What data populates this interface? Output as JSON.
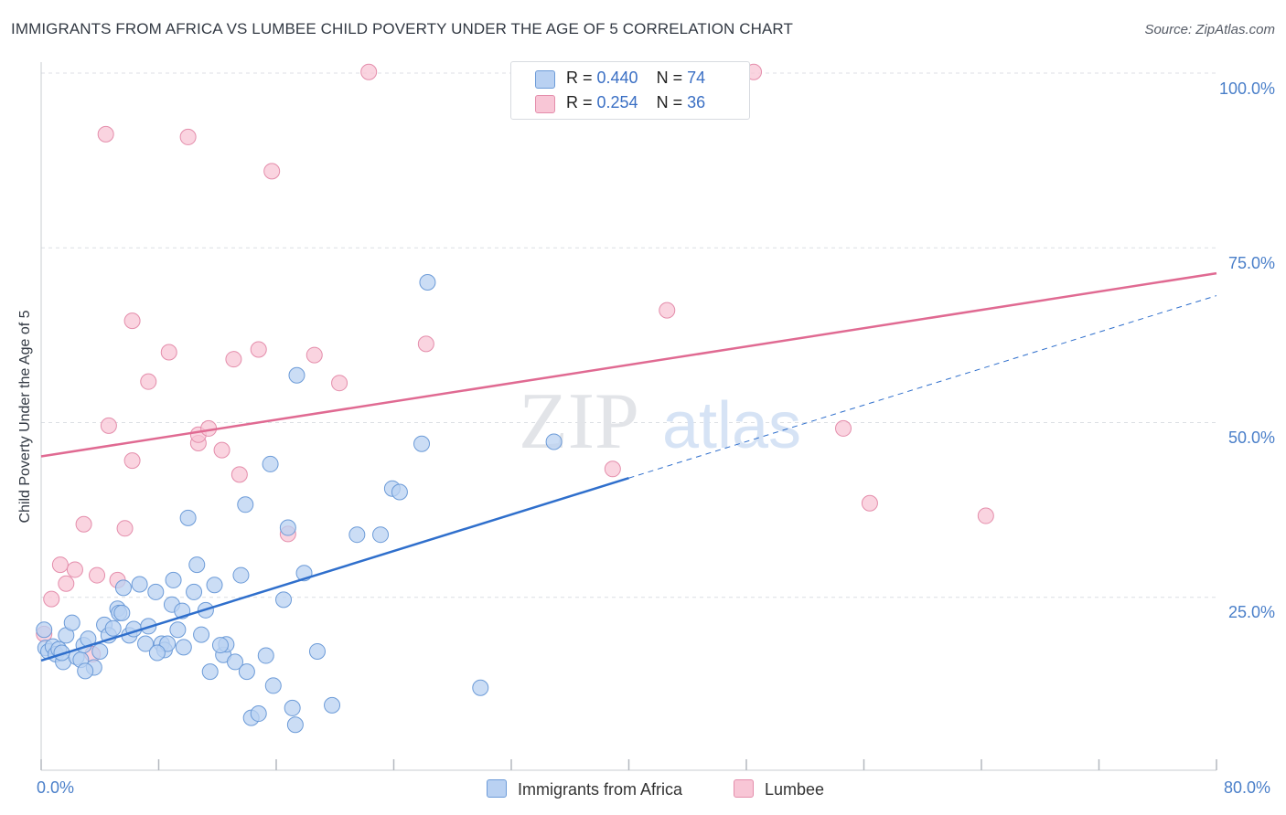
{
  "title": "IMMIGRANTS FROM AFRICA VS LUMBEE CHILD POVERTY UNDER THE AGE OF 5 CORRELATION CHART",
  "source": "Source: ZipAtlas.com",
  "watermark": {
    "zip": "ZIP",
    "atlas": "atlas"
  },
  "colors": {
    "blue_fill": "#b9d1f2",
    "blue_stroke": "#6c9bd8",
    "blue_line": "#2f6fcc",
    "pink_fill": "#f8c6d6",
    "pink_stroke": "#e48dab",
    "pink_line": "#e06a92",
    "tick_label": "#4a7fc9",
    "grid": "#dcdfe4"
  },
  "legend": {
    "rows": [
      {
        "r_label": "R = ",
        "r_value": "0.440",
        "n_label": "N = ",
        "n_value": "74",
        "color": "#b9d1f2"
      },
      {
        "r_label": "R = ",
        "r_value": "0.254",
        "n_label": "N = ",
        "n_value": "36",
        "color": "#f8c6d6"
      }
    ]
  },
  "chart_data": {
    "type": "scatter",
    "title": "IMMIGRANTS FROM AFRICA VS LUMBEE CHILD POVERTY UNDER THE AGE OF 5 CORRELATION CHART",
    "xlabel": "",
    "ylabel": "Child Poverty Under the Age of 5",
    "xlim": [
      0,
      80
    ],
    "ylim": [
      0,
      100
    ],
    "x_ticks": [
      "0.0%",
      "80.0%"
    ],
    "y_ticks": [
      {
        "value": 100,
        "label": "100.0%"
      },
      {
        "value": 75,
        "label": "75.0%"
      },
      {
        "value": 50,
        "label": "50.0%"
      },
      {
        "value": 25,
        "label": "25.0%"
      }
    ],
    "grid": true,
    "legend_position": "bottom",
    "series": [
      {
        "name": "Immigrants from Africa",
        "color": "#b9d1f2",
        "trend": {
          "x": [
            0,
            40
          ],
          "y": [
            15.7,
            41.8
          ],
          "dashed_extension": {
            "x": [
              40,
              80
            ],
            "y": [
              41.8,
              67.9
            ]
          }
        },
        "points": [
          [
            0.2,
            20.1
          ],
          [
            0.3,
            17.5
          ],
          [
            0.5,
            17.0
          ],
          [
            0.8,
            17.7
          ],
          [
            1.0,
            16.6
          ],
          [
            1.2,
            17.3
          ],
          [
            1.5,
            15.5
          ],
          [
            1.7,
            19.3
          ],
          [
            2.1,
            21.1
          ],
          [
            2.4,
            16.2
          ],
          [
            2.7,
            15.8
          ],
          [
            2.9,
            17.9
          ],
          [
            3.2,
            18.8
          ],
          [
            3.6,
            14.7
          ],
          [
            4.0,
            17.0
          ],
          [
            4.3,
            20.8
          ],
          [
            4.6,
            19.3
          ],
          [
            4.9,
            20.3
          ],
          [
            5.2,
            23.1
          ],
          [
            5.3,
            22.5
          ],
          [
            5.6,
            26.1
          ],
          [
            6.0,
            19.3
          ],
          [
            6.3,
            20.2
          ],
          [
            6.7,
            26.6
          ],
          [
            7.1,
            18.1
          ],
          [
            7.3,
            20.6
          ],
          [
            7.8,
            25.5
          ],
          [
            8.2,
            18.1
          ],
          [
            8.4,
            17.2
          ],
          [
            8.6,
            18.1
          ],
          [
            8.9,
            23.7
          ],
          [
            9.0,
            27.2
          ],
          [
            9.3,
            20.1
          ],
          [
            9.6,
            22.8
          ],
          [
            10.0,
            36.1
          ],
          [
            10.4,
            25.5
          ],
          [
            10.6,
            29.4
          ],
          [
            10.9,
            19.4
          ],
          [
            11.2,
            22.9
          ],
          [
            11.5,
            14.1
          ],
          [
            11.8,
            26.5
          ],
          [
            12.4,
            16.5
          ],
          [
            12.6,
            18.0
          ],
          [
            13.2,
            15.5
          ],
          [
            13.6,
            27.9
          ],
          [
            13.9,
            38.0
          ],
          [
            14.3,
            7.5
          ],
          [
            14.8,
            8.1
          ],
          [
            15.3,
            16.4
          ],
          [
            15.6,
            43.8
          ],
          [
            15.8,
            12.1
          ],
          [
            16.5,
            24.4
          ],
          [
            16.8,
            34.7
          ],
          [
            17.1,
            8.9
          ],
          [
            17.4,
            56.5
          ],
          [
            17.9,
            28.2
          ],
          [
            18.8,
            17.0
          ],
          [
            19.8,
            9.3
          ],
          [
            21.5,
            33.7
          ],
          [
            23.1,
            33.7
          ],
          [
            23.9,
            40.3
          ],
          [
            24.4,
            39.8
          ],
          [
            25.9,
            46.7
          ],
          [
            26.3,
            69.8
          ],
          [
            29.9,
            11.8
          ],
          [
            34.9,
            47.0
          ],
          [
            5.5,
            22.5
          ],
          [
            9.7,
            17.6
          ],
          [
            12.2,
            17.9
          ],
          [
            14.0,
            14.1
          ],
          [
            17.3,
            6.5
          ],
          [
            1.4,
            16.8
          ],
          [
            3.0,
            14.2
          ],
          [
            7.9,
            16.8
          ]
        ]
      },
      {
        "name": "Lumbee",
        "color": "#f8c6d6",
        "trend": {
          "x": [
            0,
            80
          ],
          "y": [
            44.9,
            71.1
          ]
        },
        "points": [
          [
            0.2,
            19.5
          ],
          [
            0.7,
            24.5
          ],
          [
            1.3,
            29.4
          ],
          [
            1.7,
            26.7
          ],
          [
            2.3,
            28.7
          ],
          [
            2.9,
            35.2
          ],
          [
            3.5,
            16.6
          ],
          [
            3.8,
            27.9
          ],
          [
            4.4,
            91.0
          ],
          [
            4.6,
            49.3
          ],
          [
            5.2,
            27.2
          ],
          [
            5.7,
            34.6
          ],
          [
            6.2,
            64.3
          ],
          [
            6.2,
            44.3
          ],
          [
            7.3,
            55.6
          ],
          [
            8.7,
            59.8
          ],
          [
            10.0,
            90.6
          ],
          [
            10.7,
            46.8
          ],
          [
            10.7,
            48.0
          ],
          [
            11.4,
            48.9
          ],
          [
            12.3,
            45.8
          ],
          [
            13.1,
            58.8
          ],
          [
            13.5,
            42.3
          ],
          [
            14.8,
            60.2
          ],
          [
            15.7,
            85.7
          ],
          [
            16.8,
            33.8
          ],
          [
            18.6,
            59.4
          ],
          [
            20.3,
            55.4
          ],
          [
            22.3,
            99.9
          ],
          [
            26.2,
            61.0
          ],
          [
            38.9,
            43.1
          ],
          [
            42.6,
            65.8
          ],
          [
            48.5,
            99.9
          ],
          [
            54.6,
            48.9
          ],
          [
            56.4,
            38.2
          ],
          [
            64.3,
            36.4
          ]
        ]
      }
    ]
  }
}
